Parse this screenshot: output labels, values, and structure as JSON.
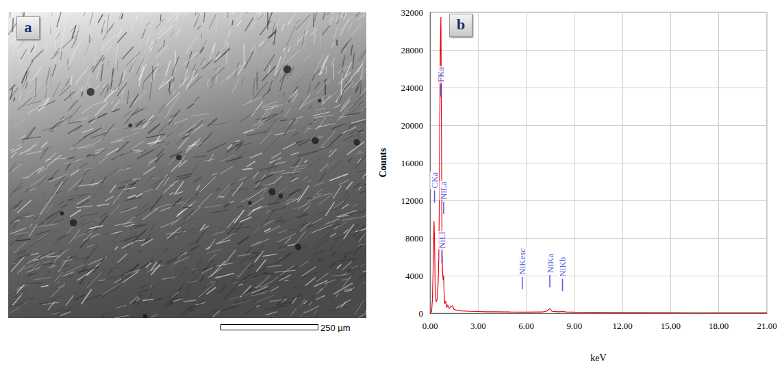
{
  "image_panel": {
    "panel_label": "a",
    "scale_bar_label": "250 µm"
  },
  "chart_data": {
    "type": "line",
    "panel_label": "b",
    "x_label": "keV",
    "y_label": "Counts",
    "color": "#e8000b",
    "x": [
      0.0,
      0.1,
      0.15,
      0.2,
      0.25,
      0.28,
      0.32,
      0.38,
      0.45,
      0.5,
      0.55,
      0.6,
      0.64,
      0.68,
      0.72,
      0.75,
      0.78,
      0.82,
      0.85,
      0.88,
      0.92,
      0.98,
      1.04,
      1.1,
      1.2,
      1.3,
      1.4,
      1.5,
      1.6,
      1.75,
      2.0,
      2.5,
      3.0,
      3.5,
      4.0,
      5.0,
      6.0,
      7.0,
      7.3,
      7.47,
      7.6,
      8.0,
      8.26,
      8.5,
      9.0,
      10,
      12,
      15,
      18,
      21
    ],
    "values": [
      0,
      200,
      1500,
      5000,
      9800,
      8000,
      3000,
      1200,
      1500,
      3000,
      6000,
      16000,
      28000,
      31500,
      18000,
      6500,
      4500,
      3500,
      4000,
      2000,
      1000,
      1300,
      600,
      900,
      500,
      700,
      800,
      400,
      350,
      300,
      250,
      200,
      180,
      160,
      150,
      130,
      120,
      130,
      250,
      500,
      200,
      150,
      180,
      140,
      120,
      100,
      80,
      60,
      50,
      40
    ],
    "xlim": [
      0,
      21
    ],
    "xticks": [
      {
        "value": 0,
        "label": "0.00"
      },
      {
        "value": 3,
        "label": "3.00"
      },
      {
        "value": 6,
        "label": "6.00"
      },
      {
        "value": 9,
        "label": "9.00"
      },
      {
        "value": 12,
        "label": "12.00"
      },
      {
        "value": 15,
        "label": "15.00"
      },
      {
        "value": 18,
        "label": "18.00"
      },
      {
        "value": 21,
        "label": "21.00"
      }
    ],
    "ylim": [
      0,
      32000
    ],
    "yticks": [
      0,
      4000,
      8000,
      12000,
      16000,
      20000,
      24000,
      28000,
      32000
    ],
    "grid": true,
    "annotations": [
      {
        "text": "CKa",
        "x": 0.28,
        "y": 13200
      },
      {
        "text": "FKa",
        "x": 0.68,
        "y": 24500
      },
      {
        "text": "NiLl",
        "x": 0.74,
        "y": 6800
      },
      {
        "text": "NiLa",
        "x": 0.85,
        "y": 12000
      },
      {
        "text": "NiKesc",
        "x": 5.75,
        "y": 4000
      },
      {
        "text": "NiKa",
        "x": 7.47,
        "y": 4200
      },
      {
        "text": "NiKb",
        "x": 8.26,
        "y": 3800
      }
    ]
  }
}
